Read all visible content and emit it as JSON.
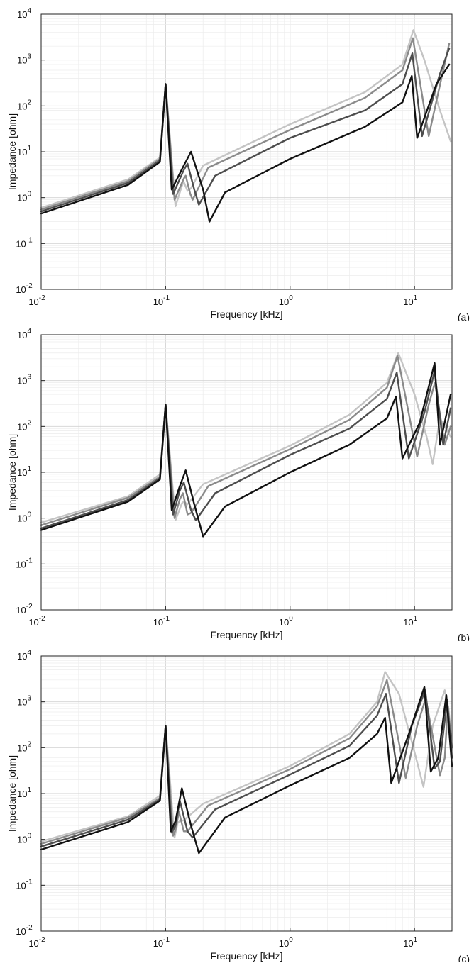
{
  "figure": {
    "panels": [
      "(a)",
      "(b)",
      "(c)"
    ]
  },
  "chart_data": [
    {
      "type": "line",
      "panel_label": "(a)",
      "xlabel": "Frequency [kHz]",
      "ylabel": "Impedance [ohm]",
      "xscale": "log",
      "yscale": "log",
      "xlim": [
        0.01,
        20
      ],
      "ylim": [
        0.01,
        10000
      ],
      "xticks": [
        {
          "base": "10",
          "exp": "-2"
        },
        {
          "base": "10",
          "exp": "-1"
        },
        {
          "base": "10",
          "exp": "0"
        },
        {
          "base": "10",
          "exp": "1"
        }
      ],
      "yticks": [
        {
          "base": "10",
          "exp": "-2"
        },
        {
          "base": "10",
          "exp": "-1"
        },
        {
          "base": "10",
          "exp": "0"
        },
        {
          "base": "10",
          "exp": "1"
        },
        {
          "base": "10",
          "exp": "2"
        },
        {
          "base": "10",
          "exp": "3"
        },
        {
          "base": "10",
          "exp": "4"
        }
      ],
      "grid": true,
      "series": [
        {
          "color": "#111111",
          "x": [
            0.01,
            0.05,
            0.09,
            0.1,
            0.112,
            0.14,
            0.16,
            0.2,
            0.225,
            0.3,
            1,
            4,
            8,
            9.5,
            10.5,
            15,
            19
          ],
          "y": [
            0.45,
            1.9,
            6,
            300,
            1.5,
            5,
            10,
            1.5,
            0.3,
            1.3,
            7,
            35,
            120,
            450,
            20,
            300,
            800
          ]
        },
        {
          "color": "#4d4d4d",
          "x": [
            0.01,
            0.05,
            0.09,
            0.1,
            0.115,
            0.14,
            0.15,
            0.17,
            0.185,
            0.25,
            1,
            4,
            8,
            9.6,
            11.5,
            16,
            19
          ],
          "y": [
            0.5,
            2.1,
            6.5,
            300,
            1.2,
            4,
            5.5,
            1.5,
            0.7,
            3,
            20,
            80,
            300,
            1400,
            22,
            500,
            1800
          ]
        },
        {
          "color": "#8a8a8a",
          "x": [
            0.01,
            0.05,
            0.09,
            0.1,
            0.118,
            0.14,
            0.145,
            0.158,
            0.165,
            0.22,
            1,
            4,
            8,
            9.7,
            13,
            17,
            19
          ],
          "y": [
            0.55,
            2.3,
            7,
            300,
            0.9,
            2.6,
            3,
            1.2,
            0.9,
            4.5,
            30,
            150,
            600,
            3000,
            22,
            600,
            2300
          ]
        },
        {
          "color": "#c4c4c4",
          "x": [
            0.01,
            0.05,
            0.09,
            0.1,
            0.12,
            0.135,
            0.14,
            0.15,
            0.16,
            0.2,
            1,
            4,
            8,
            9.8,
            12,
            16,
            19.5
          ],
          "y": [
            0.6,
            2.5,
            7.5,
            300,
            0.65,
            1.8,
            2.2,
            1.4,
            1.6,
            5,
            40,
            200,
            800,
            4500,
            1000,
            80,
            17
          ]
        }
      ]
    },
    {
      "type": "line",
      "panel_label": "(b)",
      "xlabel": "Frequency [kHz]",
      "ylabel": "Impedance [ohm]",
      "xscale": "log",
      "yscale": "log",
      "xlim": [
        0.01,
        20
      ],
      "ylim": [
        0.01,
        10000
      ],
      "xticks": [
        {
          "base": "10",
          "exp": "-2"
        },
        {
          "base": "10",
          "exp": "-1"
        },
        {
          "base": "10",
          "exp": "0"
        },
        {
          "base": "10",
          "exp": "1"
        }
      ],
      "yticks": [
        {
          "base": "10",
          "exp": "-2"
        },
        {
          "base": "10",
          "exp": "-1"
        },
        {
          "base": "10",
          "exp": "0"
        },
        {
          "base": "10",
          "exp": "1"
        },
        {
          "base": "10",
          "exp": "2"
        },
        {
          "base": "10",
          "exp": "3"
        },
        {
          "base": "10",
          "exp": "4"
        }
      ],
      "grid": true,
      "series": [
        {
          "color": "#111111",
          "x": [
            0.01,
            0.05,
            0.09,
            0.1,
            0.112,
            0.13,
            0.145,
            0.17,
            0.2,
            0.3,
            1,
            3,
            6,
            7.1,
            8,
            11,
            14.5,
            16,
            19.5
          ],
          "y": [
            0.55,
            2.3,
            7,
            300,
            1.5,
            5,
            11,
            2,
            0.4,
            1.8,
            10,
            40,
            150,
            450,
            20,
            120,
            2400,
            40,
            500
          ]
        },
        {
          "color": "#4d4d4d",
          "x": [
            0.01,
            0.05,
            0.09,
            0.1,
            0.115,
            0.13,
            0.14,
            0.16,
            0.175,
            0.25,
            1,
            3,
            6,
            7.2,
            9,
            12,
            14.5,
            17,
            19.5
          ],
          "y": [
            0.6,
            2.5,
            7.5,
            300,
            1.2,
            4,
            6,
            1.5,
            0.9,
            3.5,
            24,
            90,
            400,
            1500,
            20,
            200,
            1600,
            40,
            250
          ]
        },
        {
          "color": "#8a8a8a",
          "x": [
            0.01,
            0.05,
            0.09,
            0.1,
            0.118,
            0.13,
            0.138,
            0.15,
            0.16,
            0.22,
            1,
            3,
            6,
            7.3,
            10.5,
            13,
            14.6,
            17.5,
            19.5
          ],
          "y": [
            0.7,
            2.8,
            8,
            300,
            1,
            2.6,
            3.5,
            1.2,
            1.3,
            5,
            32,
            140,
            700,
            3500,
            22,
            300,
            900,
            40,
            100
          ]
        },
        {
          "color": "#c4c4c4",
          "x": [
            0.01,
            0.05,
            0.09,
            0.1,
            0.12,
            0.135,
            0.14,
            0.15,
            0.2,
            1,
            3,
            6,
            7.4,
            10,
            12.5,
            14,
            16,
            19.5
          ],
          "y": [
            0.8,
            3,
            9,
            300,
            0.9,
            2.1,
            2.3,
            2,
            5.5,
            38,
            180,
            900,
            4000,
            500,
            60,
            15,
            150,
            60
          ]
        }
      ]
    },
    {
      "type": "line",
      "panel_label": "(c)",
      "xlabel": "Frequency [kHz]",
      "ylabel": "Impedance [ohm]",
      "xscale": "log",
      "yscale": "log",
      "xlim": [
        0.01,
        20
      ],
      "ylim": [
        0.01,
        10000
      ],
      "xticks": [
        {
          "base": "10",
          "exp": "-2"
        },
        {
          "base": "10",
          "exp": "-1"
        },
        {
          "base": "10",
          "exp": "0"
        },
        {
          "base": "10",
          "exp": "1"
        }
      ],
      "yticks": [
        {
          "base": "10",
          "exp": "-2"
        },
        {
          "base": "10",
          "exp": "-1"
        },
        {
          "base": "10",
          "exp": "0"
        },
        {
          "base": "10",
          "exp": "1"
        },
        {
          "base": "10",
          "exp": "2"
        },
        {
          "base": "10",
          "exp": "3"
        },
        {
          "base": "10",
          "exp": "4"
        }
      ],
      "grid": true,
      "series": [
        {
          "color": "#111111",
          "x": [
            0.01,
            0.05,
            0.09,
            0.1,
            0.11,
            0.12,
            0.135,
            0.16,
            0.185,
            0.3,
            1,
            3,
            5,
            5.8,
            6.5,
            9,
            12,
            13.5,
            15.5,
            18,
            20
          ],
          "y": [
            0.6,
            2.4,
            7,
            300,
            1.5,
            2.5,
            13,
            2,
            0.5,
            3,
            15,
            60,
            200,
            450,
            17,
            200,
            2100,
            30,
            60,
            1400,
            40
          ]
        },
        {
          "color": "#4d4d4d",
          "x": [
            0.01,
            0.05,
            0.09,
            0.1,
            0.112,
            0.12,
            0.13,
            0.15,
            0.165,
            0.25,
            1,
            3,
            5,
            5.9,
            7.5,
            9.5,
            12.2,
            14.5,
            16,
            18.3,
            20
          ],
          "y": [
            0.7,
            2.7,
            7.5,
            300,
            1.4,
            2,
            7,
            1.5,
            1.1,
            4.5,
            26,
            110,
            500,
            1500,
            17,
            300,
            1800,
            35,
            50,
            1100,
            60
          ]
        },
        {
          "color": "#8a8a8a",
          "x": [
            0.01,
            0.05,
            0.09,
            0.1,
            0.115,
            0.12,
            0.128,
            0.14,
            0.15,
            0.22,
            1,
            3,
            5,
            6,
            8.5,
            10.5,
            12.3,
            16,
            17.5,
            18.5,
            20
          ],
          "y": [
            0.8,
            3,
            8,
            300,
            1.2,
            1.6,
            4,
            1.5,
            1.5,
            5.5,
            34,
            160,
            800,
            3000,
            22,
            300,
            1200,
            25,
            60,
            800,
            100
          ]
        },
        {
          "color": "#c4c4c4",
          "x": [
            0.01,
            0.05,
            0.09,
            0.1,
            0.118,
            0.125,
            0.13,
            0.14,
            0.2,
            1,
            3,
            5,
            5.8,
            7.5,
            10,
            11.8,
            14,
            17.5,
            18.8,
            20
          ],
          "y": [
            0.9,
            3.2,
            9,
            300,
            1.1,
            2.3,
            2.5,
            2.6,
            6,
            40,
            200,
            1000,
            4500,
            1500,
            80,
            14,
            300,
            1800,
            700,
            100
          ]
        }
      ]
    }
  ]
}
